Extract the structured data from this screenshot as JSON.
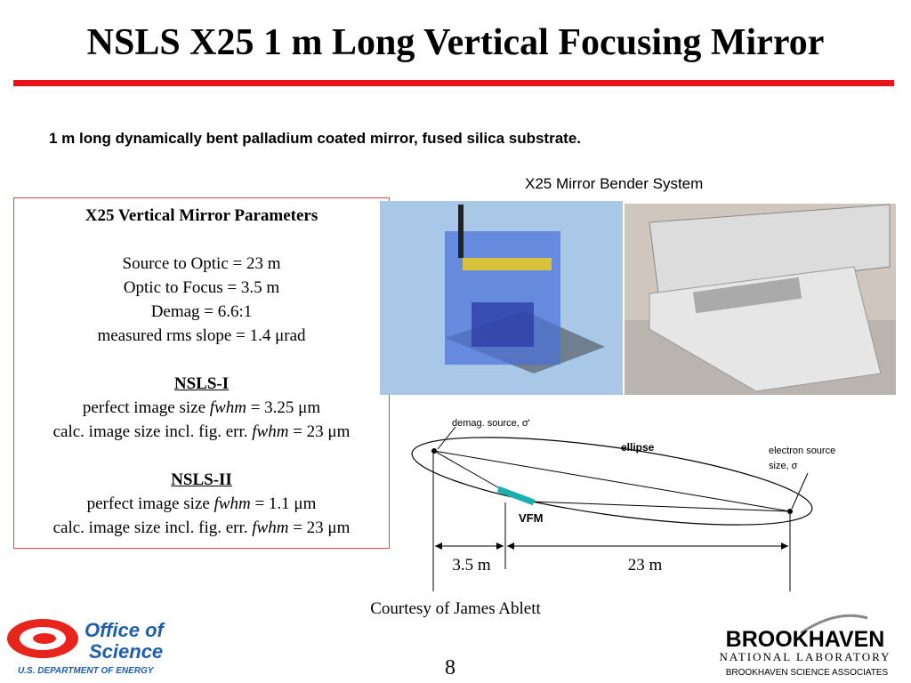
{
  "title": "NSLS X25 1 m Long Vertical Focusing Mirror",
  "subtitle": "1 m long dynamically bent palladium coated mirror, fused silica substrate.",
  "parameters": {
    "heading": "X25 Vertical Mirror Parameters",
    "lines": [
      "Source to Optic = 23 m",
      "Optic to Focus = 3.5 m",
      "Demag = 6.6:1",
      "measured rms slope = 1.4 μrad"
    ],
    "sections": [
      {
        "heading": "NSLS-I",
        "lines": [
          [
            "perfect image size ",
            "fwhm",
            " = 3.25 μm"
          ],
          [
            "calc. image size incl. fig. err. ",
            "fwhm",
            " = 23 μm"
          ]
        ]
      },
      {
        "heading": "NSLS-II",
        "lines": [
          [
            "perfect image size ",
            "fwhm",
            " = 1.1 μm"
          ],
          [
            "calc. image size incl. fig. err. ",
            "fwhm",
            " = 23 μm"
          ]
        ]
      }
    ]
  },
  "figure_caption": "X25 Mirror Bender System",
  "diagram": {
    "demag_source": "demag. source, σ'",
    "ellipse": "ellipse",
    "electron_source": [
      "electron source",
      "size, σ"
    ],
    "vfm": "VFM",
    "focus_distance": "3.5 m",
    "source_distance": "23 m"
  },
  "credit": "Courtesy of James Ablett",
  "page_number": "8",
  "logos": {
    "doe": [
      "Office of",
      "Science",
      "U.S. DEPARTMENT OF ENERGY"
    ],
    "bnl": [
      "BROOKHAVEN",
      "NATIONAL LABORATORY",
      "BROOKHAVEN SCIENCE ASSOCIATES"
    ]
  }
}
